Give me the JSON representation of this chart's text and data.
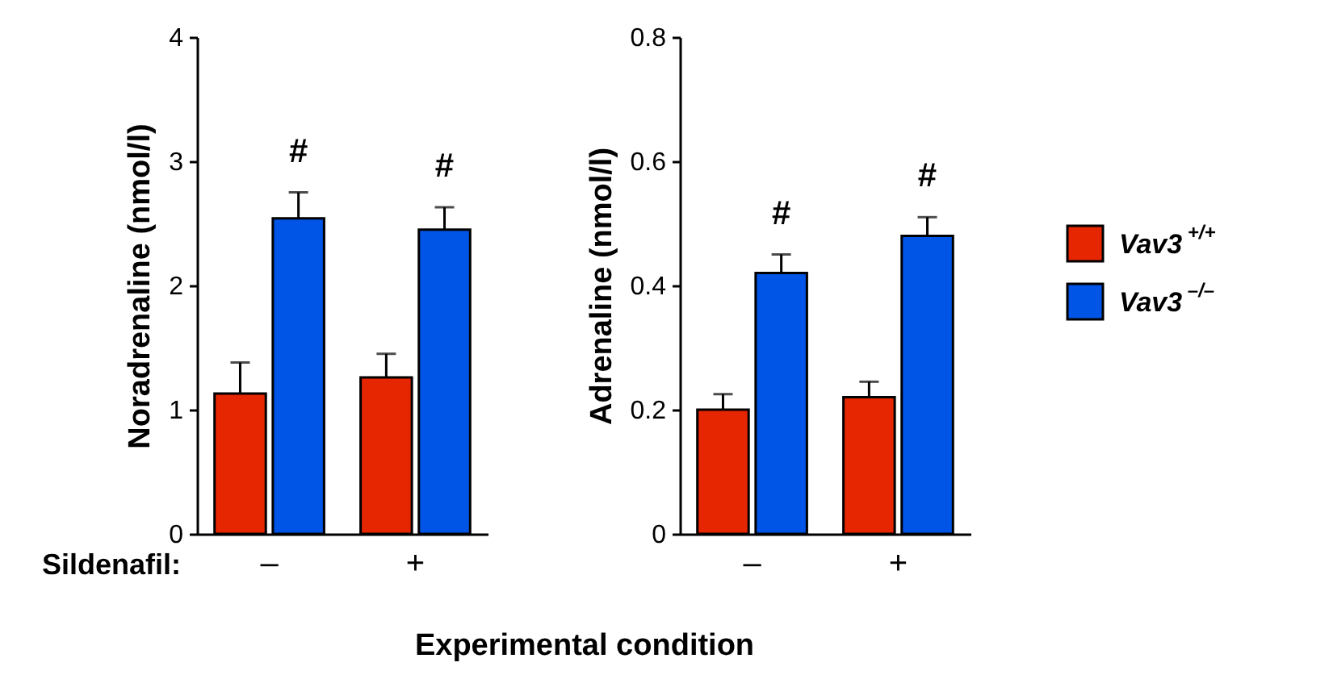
{
  "chart_data": [
    {
      "type": "bar",
      "ylabel": "Noradrenaline (nmol/l)",
      "xlabel": "Experimental condition",
      "categories": [
        "–",
        "+"
      ],
      "ylim": [
        0,
        4
      ],
      "yticks": [
        0,
        1,
        2,
        3,
        4
      ],
      "legend": false,
      "series": [
        {
          "color": "#e62600",
          "values": [
            1.13,
            1.26
          ],
          "errors": [
            [
              1.13,
              1.38
            ],
            [
              1.26,
              1.45
            ]
          ]
        },
        {
          "color": "#0055e6",
          "values": [
            2.54,
            2.45
          ],
          "errors": [
            [
              2.54,
              2.75
            ],
            [
              2.45,
              2.63
            ]
          ]
        }
      ],
      "annotations": [
        "Sildenafil:",
        "#",
        "#"
      ]
    },
    {
      "type": "bar",
      "ylabel": "Adrenaline (nmol/l)",
      "categories": [
        "–",
        "+"
      ],
      "ylim": [
        0,
        0.8
      ],
      "yticks": [
        0,
        0.2,
        0.4,
        0.6,
        0.8
      ],
      "legend": "right",
      "series": [
        {
          "name": "Vav3 $^{+/+}$",
          "color": "#e62600",
          "values": [
            0.2,
            0.22
          ],
          "errors": [
            [
              0.2,
              0.225
            ],
            [
              0.22,
              0.245
            ]
          ]
        },
        {
          "name": "Vav3 $^{–/–}$",
          "color": "#0055e6",
          "values": [
            0.42,
            0.48
          ],
          "errors": [
            [
              0.42,
              0.45
            ],
            [
              0.48,
              0.51
            ]
          ]
        }
      ],
      "annotations": [
        "#",
        "#"
      ]
    }
  ]
}
